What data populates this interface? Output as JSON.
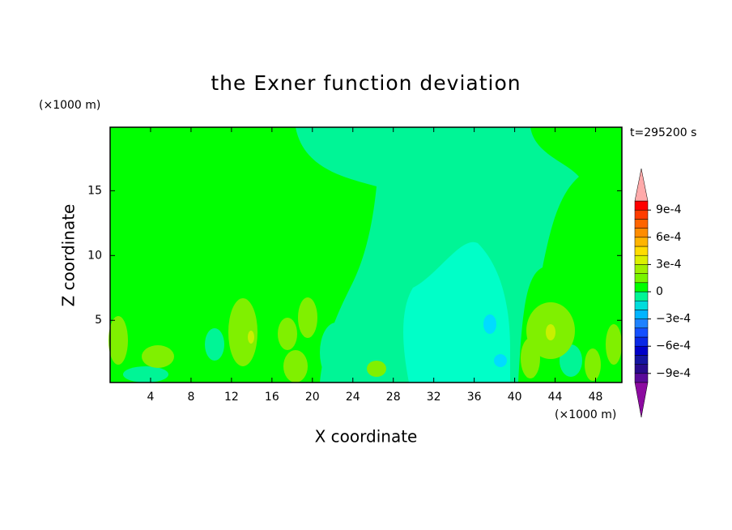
{
  "chart_data": {
    "type": "contour",
    "title": "the Exner function deviation",
    "x_label": "X coordinate",
    "y_label": "Z coordinate",
    "x_unit": "(×1000 m)",
    "y_unit": "(×1000 m)",
    "time_label": "t=295200 s",
    "xlim": [
      0,
      50.6
    ],
    "xticks": [
      4,
      8,
      12,
      16,
      20,
      24,
      28,
      32,
      36,
      40,
      44,
      48
    ],
    "ylim": [
      0.2,
      19.9
    ],
    "yticks": [
      5,
      10,
      15
    ],
    "colorbar": {
      "clim": [
        -0.001,
        0.001
      ],
      "colors": [
        "#5a0a9a",
        "#280a8c",
        "#1414a0",
        "#0000c8",
        "#0a28e6",
        "#1450ff",
        "#1e82ff",
        "#00b4ff",
        "#00dcdc",
        "#00f596",
        "#00ff00",
        "#78f500",
        "#a0f000",
        "#dcf000",
        "#ffdc00",
        "#ffb400",
        "#ff8c00",
        "#ff6400",
        "#ff3c00",
        "#ff0000"
      ],
      "under_color": "#8c0aa0",
      "over_color": "#ffaaaa",
      "ticks": [
        {
          "value": 0.0009,
          "label": "9e-4"
        },
        {
          "value": 0.0006,
          "label": "6e-4"
        },
        {
          "value": 0.0003,
          "label": "3e-4"
        },
        0,
        {
          "value": -0.0003,
          "label": "−3e-4"
        },
        {
          "value": -0.0006,
          "label": "−6e-4"
        },
        {
          "value": -0.0009,
          "label": "−9e-4"
        }
      ]
    }
  }
}
